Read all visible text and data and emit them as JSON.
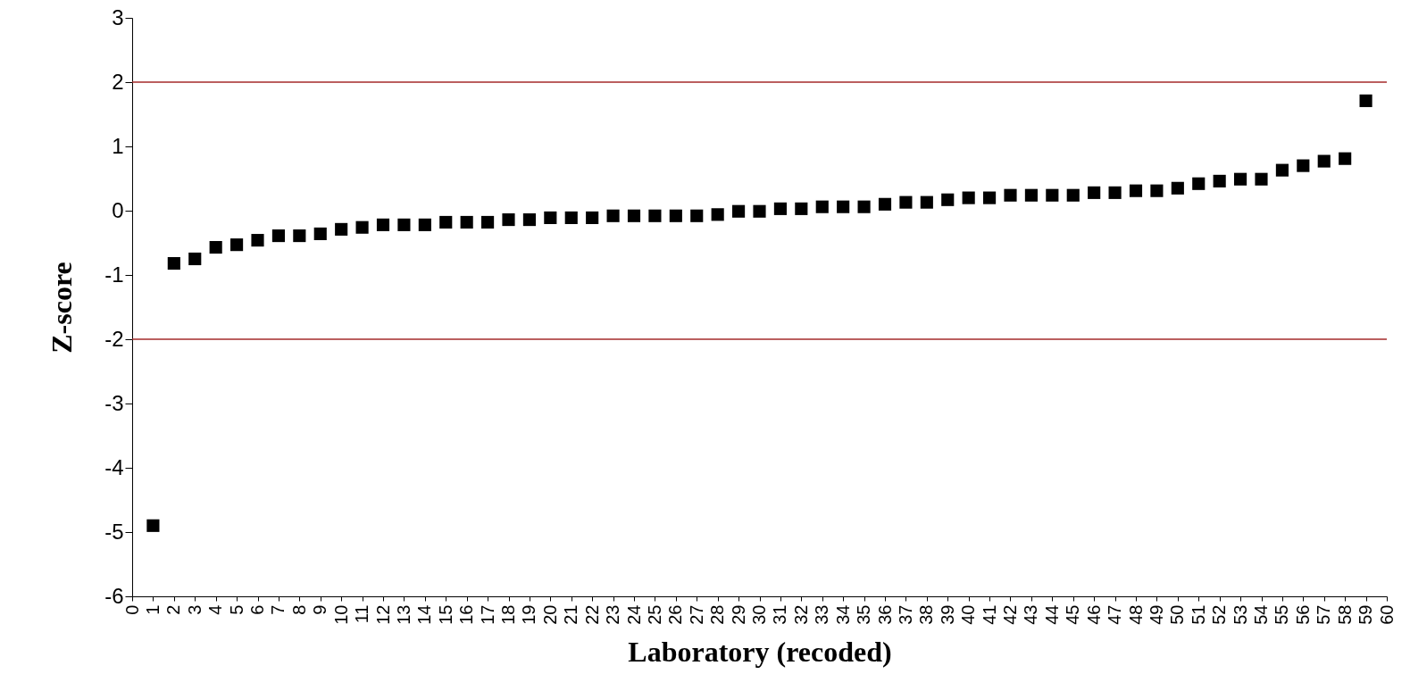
{
  "chart_data": {
    "type": "scatter",
    "xlabel": "Laboratory (recoded)",
    "ylabel": "Z-score",
    "x": [
      1,
      2,
      3,
      4,
      5,
      6,
      7,
      8,
      9,
      10,
      11,
      12,
      13,
      14,
      15,
      16,
      17,
      18,
      19,
      20,
      21,
      22,
      23,
      24,
      25,
      26,
      27,
      28,
      29,
      30,
      31,
      32,
      33,
      34,
      35,
      36,
      37,
      38,
      39,
      40,
      41,
      42,
      43,
      44,
      45,
      46,
      47,
      48,
      49,
      50,
      51,
      52,
      53,
      54,
      55,
      56,
      57,
      58,
      59
    ],
    "values": [
      -4.9,
      -0.82,
      -0.75,
      -0.57,
      -0.53,
      -0.46,
      -0.39,
      -0.39,
      -0.36,
      -0.29,
      -0.26,
      -0.22,
      -0.22,
      -0.22,
      -0.18,
      -0.18,
      -0.18,
      -0.14,
      -0.14,
      -0.11,
      -0.11,
      -0.11,
      -0.08,
      -0.08,
      -0.08,
      -0.08,
      -0.08,
      -0.06,
      -0.01,
      -0.01,
      0.03,
      0.03,
      0.06,
      0.06,
      0.06,
      0.1,
      0.13,
      0.13,
      0.17,
      0.2,
      0.2,
      0.24,
      0.24,
      0.24,
      0.24,
      0.28,
      0.28,
      0.31,
      0.31,
      0.35,
      0.42,
      0.46,
      0.49,
      0.49,
      0.63,
      0.7,
      0.77,
      0.81,
      1.71
    ],
    "color": "#000000",
    "marker": "square",
    "xlim": [
      0,
      60
    ],
    "xticks": [
      0,
      1,
      2,
      3,
      4,
      5,
      6,
      7,
      8,
      9,
      10,
      11,
      12,
      13,
      14,
      15,
      16,
      17,
      18,
      19,
      20,
      21,
      22,
      23,
      24,
      25,
      26,
      27,
      28,
      29,
      30,
      31,
      32,
      33,
      34,
      35,
      36,
      37,
      38,
      39,
      40,
      41,
      42,
      43,
      44,
      45,
      46,
      47,
      48,
      49,
      50,
      51,
      52,
      53,
      54,
      55,
      56,
      57,
      58,
      59,
      60
    ],
    "ylim": [
      -6,
      3
    ],
    "yticks": [
      -6,
      -5,
      -4,
      -3,
      -2,
      -1,
      0,
      1,
      2,
      3
    ],
    "ref_lines": [
      {
        "axis": "y",
        "value": 2,
        "color": "#a52a2a"
      },
      {
        "axis": "y",
        "value": -2,
        "color": "#a52a2a"
      }
    ]
  }
}
